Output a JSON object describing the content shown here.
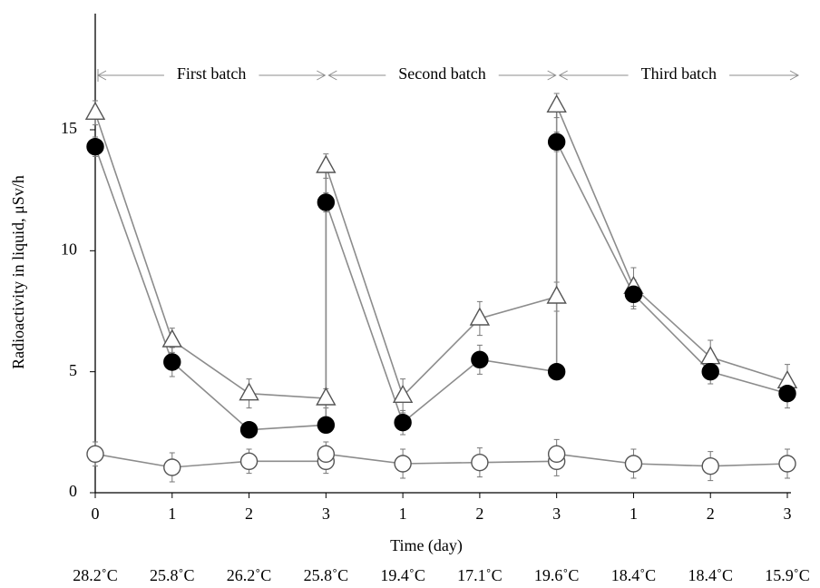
{
  "chart_data": {
    "type": "line",
    "xlabel": "Time (day)",
    "ylabel": "Radioactivity in liquid, μSv/h",
    "x": [
      0,
      1,
      2,
      3,
      3,
      4,
      5,
      6,
      6,
      7,
      8,
      9
    ],
    "xlim": [
      0,
      9
    ],
    "xticks": [
      0,
      1,
      2,
      3,
      {
        "value": 4,
        "label": "1"
      },
      {
        "value": 5,
        "label": "2"
      },
      {
        "value": 6,
        "label": "3"
      },
      {
        "value": 7,
        "label": "1"
      },
      {
        "value": 8,
        "label": "2"
      },
      {
        "value": 9,
        "label": "3"
      }
    ],
    "ylim": [
      0,
      19.8
    ],
    "yticks": [
      0,
      5,
      10,
      15
    ],
    "temperatures": [
      "28.2˚C",
      "25.8˚C",
      "26.2˚C",
      "25.8˚C",
      "19.4˚C",
      "17.1˚C",
      "19.6˚C",
      "18.4˚C",
      "18.4˚C",
      "15.9˚C"
    ],
    "batches": [
      "First batch",
      "Second batch",
      "Third batch"
    ],
    "line_color": "#8c8c8c",
    "series": [
      {
        "marker": "triangle",
        "fill": "#ffffff",
        "color": "#555555",
        "values": [
          15.7,
          6.3,
          4.1,
          3.9,
          13.5,
          4.0,
          7.2,
          8.1,
          16.0,
          8.5,
          5.6,
          4.6
        ],
        "errors": [
          0.5,
          0.5,
          0.6,
          0.4,
          0.5,
          0.7,
          0.7,
          0.6,
          0.5,
          0.8,
          0.7,
          0.7
        ]
      },
      {
        "marker": "circle",
        "fill": "#000000",
        "color": "#000000",
        "values": [
          14.3,
          5.4,
          2.6,
          2.8,
          12.0,
          2.9,
          5.5,
          5.0,
          14.5,
          8.2,
          5.0,
          4.1
        ],
        "errors": [
          0.4,
          0.6,
          0.3,
          0.3,
          0.4,
          0.5,
          0.6,
          0.3,
          0.4,
          0.6,
          0.5,
          0.6
        ]
      },
      {
        "marker": "circle",
        "fill": "#ffffff",
        "color": "#555555",
        "values": [
          1.6,
          1.05,
          1.3,
          1.3,
          1.6,
          1.2,
          1.25,
          1.3,
          1.6,
          1.2,
          1.1,
          1.2
        ],
        "errors": [
          0.5,
          0.6,
          0.5,
          0.5,
          0.5,
          0.6,
          0.6,
          0.6,
          0.6,
          0.6,
          0.6,
          0.6
        ]
      }
    ]
  }
}
